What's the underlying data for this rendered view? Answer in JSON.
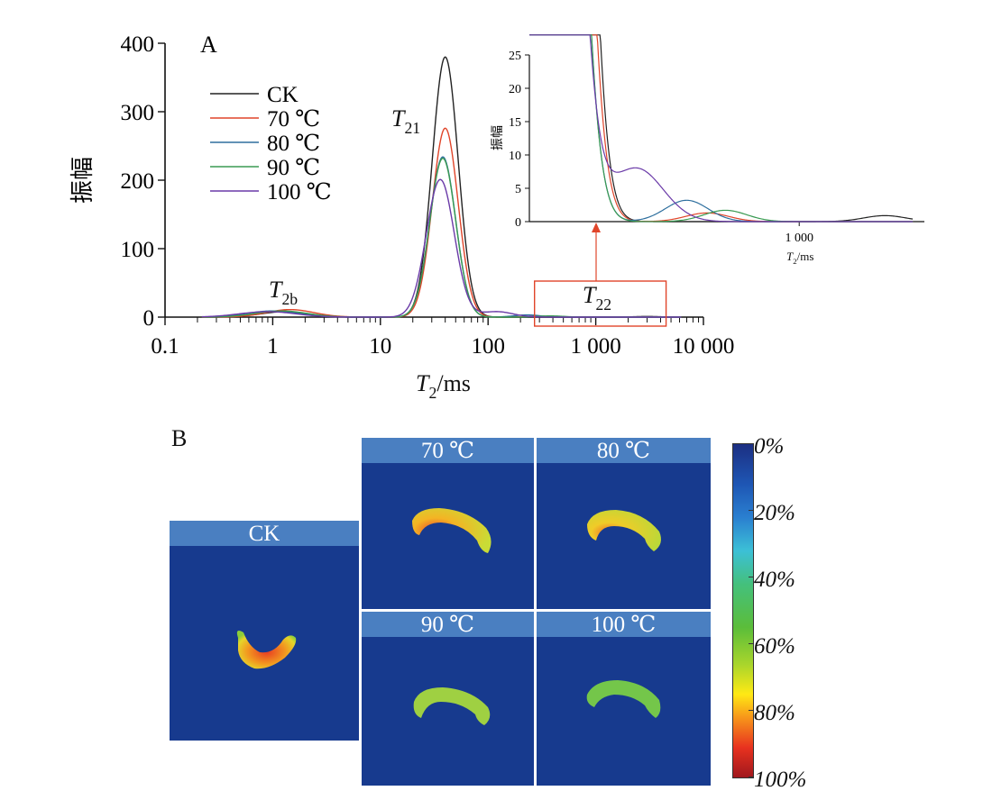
{
  "colors": {
    "CK": "#222222",
    "t70": "#e0452a",
    "t80": "#2e6f9e",
    "t90": "#3a9a52",
    "t100": "#6a3aa8",
    "highlight": "#e0452a"
  },
  "chart_data": [
    {
      "id": "A",
      "type": "line",
      "panel_label": "A",
      "xlabel_main": "T",
      "xlabel_sub": "2",
      "xlabel_rest": "/ms",
      "ylabel": "振幅",
      "x_scale": "log",
      "xlim": [
        0.1,
        10000
      ],
      "ylim": [
        0,
        400
      ],
      "x_ticks": [
        0.1,
        1,
        10,
        100,
        1000,
        10000
      ],
      "x_tick_labels": [
        "0.1",
        "1",
        "10",
        "100",
        "1 000",
        "10 000"
      ],
      "y_ticks": [
        0,
        100,
        200,
        300,
        400
      ],
      "y_tick_labels": [
        "0",
        "100",
        "200",
        "300",
        "400"
      ],
      "legend": [
        "CK",
        "70 ℃",
        "80 ℃",
        "90 ℃",
        "100 ℃"
      ],
      "legend_position": "top-left",
      "annotations": [
        {
          "main": "T",
          "sub": "2b"
        },
        {
          "main": "T",
          "sub": "21"
        },
        {
          "main": "T",
          "sub": "22"
        }
      ],
      "peaks_description": "gaussian peaks in log-space: center (ms), height, width (log10 units)",
      "series": [
        {
          "name": "CK",
          "color_key": "CK",
          "peaks": [
            {
              "c": 1.3,
              "h": 8,
              "w": 0.22
            },
            {
              "c": 40,
              "h": 380,
              "w": 0.12
            },
            {
              "c": 3000,
              "h": 0.9,
              "w": 0.12
            }
          ]
        },
        {
          "name": "70 ℃",
          "color_key": "t70",
          "peaks": [
            {
              "c": 1.45,
              "h": 11,
              "w": 0.22
            },
            {
              "c": 40,
              "h": 276,
              "w": 0.12
            },
            {
              "c": 300,
              "h": 1.3,
              "w": 0.12
            }
          ]
        },
        {
          "name": "80 ℃",
          "color_key": "t80",
          "peaks": [
            {
              "c": 1.0,
              "h": 9,
              "w": 0.24
            },
            {
              "c": 38,
              "h": 234,
              "w": 0.12
            },
            {
              "c": 230,
              "h": 3.2,
              "w": 0.12
            }
          ]
        },
        {
          "name": "90 ℃",
          "color_key": "t90",
          "peaks": [
            {
              "c": 1.2,
              "h": 9,
              "w": 0.24
            },
            {
              "c": 38,
              "h": 232,
              "w": 0.12
            },
            {
              "c": 380,
              "h": 1.7,
              "w": 0.12
            }
          ]
        },
        {
          "name": "100 ℃",
          "color_key": "t100",
          "peaks": [
            {
              "c": 0.9,
              "h": 8,
              "w": 0.26
            },
            {
              "c": 36,
              "h": 201,
              "w": 0.13
            },
            {
              "c": 120,
              "h": 8,
              "w": 0.15
            }
          ]
        }
      ],
      "highlight_box_x": [
        270,
        4500
      ]
    },
    {
      "id": "A-inset",
      "type": "line",
      "ylabel": "振幅",
      "xlabel_main": "T",
      "xlabel_sub": "2",
      "xlabel_rest": "/ms",
      "x_scale": "log",
      "xlim": [
        30,
        5000
      ],
      "ylim": [
        0,
        25
      ],
      "x_ticks": [
        1000
      ],
      "x_tick_labels": [
        "1 000"
      ],
      "y_ticks": [
        0,
        5,
        10,
        15,
        20,
        25
      ],
      "y_tick_labels": [
        "0",
        "5",
        "10",
        "15",
        "20",
        "25"
      ]
    }
  ],
  "panel_b": {
    "label": "B",
    "images": [
      {
        "key": "CK",
        "label": "CK"
      },
      {
        "key": "t70",
        "label": "70 ℃"
      },
      {
        "key": "t80",
        "label": "80 ℃"
      },
      {
        "key": "t90",
        "label": "90 ℃"
      },
      {
        "key": "t100",
        "label": "100 ℃"
      }
    ],
    "colorbar": {
      "ticks": [
        "0%",
        "20%",
        "40%",
        "60%",
        "80%",
        "100%"
      ],
      "tick_fractions": [
        0,
        0.2,
        0.4,
        0.6,
        0.8,
        1.0
      ]
    }
  }
}
